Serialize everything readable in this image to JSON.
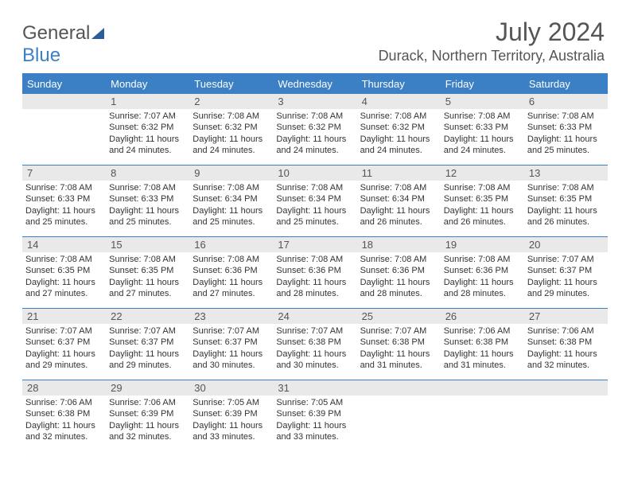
{
  "logo": {
    "word1": "General",
    "word2": "Blue"
  },
  "title": "July 2024",
  "location": "Durack, Northern Territory, Australia",
  "colors": {
    "header_bg": "#3b7fc4",
    "header_fg": "#ffffff",
    "daynum_bg": "#e9e9e9",
    "text": "#333333",
    "logo_gray": "#555555",
    "logo_blue": "#3b7fc4"
  },
  "dayHeaders": [
    "Sunday",
    "Monday",
    "Tuesday",
    "Wednesday",
    "Thursday",
    "Friday",
    "Saturday"
  ],
  "grid": [
    [
      null,
      {
        "n": "1",
        "sr": "7:07 AM",
        "ss": "6:32 PM",
        "dl": "11 hours and 24 minutes."
      },
      {
        "n": "2",
        "sr": "7:08 AM",
        "ss": "6:32 PM",
        "dl": "11 hours and 24 minutes."
      },
      {
        "n": "3",
        "sr": "7:08 AM",
        "ss": "6:32 PM",
        "dl": "11 hours and 24 minutes."
      },
      {
        "n": "4",
        "sr": "7:08 AM",
        "ss": "6:32 PM",
        "dl": "11 hours and 24 minutes."
      },
      {
        "n": "5",
        "sr": "7:08 AM",
        "ss": "6:33 PM",
        "dl": "11 hours and 24 minutes."
      },
      {
        "n": "6",
        "sr": "7:08 AM",
        "ss": "6:33 PM",
        "dl": "11 hours and 25 minutes."
      }
    ],
    [
      {
        "n": "7",
        "sr": "7:08 AM",
        "ss": "6:33 PM",
        "dl": "11 hours and 25 minutes."
      },
      {
        "n": "8",
        "sr": "7:08 AM",
        "ss": "6:33 PM",
        "dl": "11 hours and 25 minutes."
      },
      {
        "n": "9",
        "sr": "7:08 AM",
        "ss": "6:34 PM",
        "dl": "11 hours and 25 minutes."
      },
      {
        "n": "10",
        "sr": "7:08 AM",
        "ss": "6:34 PM",
        "dl": "11 hours and 25 minutes."
      },
      {
        "n": "11",
        "sr": "7:08 AM",
        "ss": "6:34 PM",
        "dl": "11 hours and 26 minutes."
      },
      {
        "n": "12",
        "sr": "7:08 AM",
        "ss": "6:35 PM",
        "dl": "11 hours and 26 minutes."
      },
      {
        "n": "13",
        "sr": "7:08 AM",
        "ss": "6:35 PM",
        "dl": "11 hours and 26 minutes."
      }
    ],
    [
      {
        "n": "14",
        "sr": "7:08 AM",
        "ss": "6:35 PM",
        "dl": "11 hours and 27 minutes."
      },
      {
        "n": "15",
        "sr": "7:08 AM",
        "ss": "6:35 PM",
        "dl": "11 hours and 27 minutes."
      },
      {
        "n": "16",
        "sr": "7:08 AM",
        "ss": "6:36 PM",
        "dl": "11 hours and 27 minutes."
      },
      {
        "n": "17",
        "sr": "7:08 AM",
        "ss": "6:36 PM",
        "dl": "11 hours and 28 minutes."
      },
      {
        "n": "18",
        "sr": "7:08 AM",
        "ss": "6:36 PM",
        "dl": "11 hours and 28 minutes."
      },
      {
        "n": "19",
        "sr": "7:08 AM",
        "ss": "6:36 PM",
        "dl": "11 hours and 28 minutes."
      },
      {
        "n": "20",
        "sr": "7:07 AM",
        "ss": "6:37 PM",
        "dl": "11 hours and 29 minutes."
      }
    ],
    [
      {
        "n": "21",
        "sr": "7:07 AM",
        "ss": "6:37 PM",
        "dl": "11 hours and 29 minutes."
      },
      {
        "n": "22",
        "sr": "7:07 AM",
        "ss": "6:37 PM",
        "dl": "11 hours and 29 minutes."
      },
      {
        "n": "23",
        "sr": "7:07 AM",
        "ss": "6:37 PM",
        "dl": "11 hours and 30 minutes."
      },
      {
        "n": "24",
        "sr": "7:07 AM",
        "ss": "6:38 PM",
        "dl": "11 hours and 30 minutes."
      },
      {
        "n": "25",
        "sr": "7:07 AM",
        "ss": "6:38 PM",
        "dl": "11 hours and 31 minutes."
      },
      {
        "n": "26",
        "sr": "7:06 AM",
        "ss": "6:38 PM",
        "dl": "11 hours and 31 minutes."
      },
      {
        "n": "27",
        "sr": "7:06 AM",
        "ss": "6:38 PM",
        "dl": "11 hours and 32 minutes."
      }
    ],
    [
      {
        "n": "28",
        "sr": "7:06 AM",
        "ss": "6:38 PM",
        "dl": "11 hours and 32 minutes."
      },
      {
        "n": "29",
        "sr": "7:06 AM",
        "ss": "6:39 PM",
        "dl": "11 hours and 32 minutes."
      },
      {
        "n": "30",
        "sr": "7:05 AM",
        "ss": "6:39 PM",
        "dl": "11 hours and 33 minutes."
      },
      {
        "n": "31",
        "sr": "7:05 AM",
        "ss": "6:39 PM",
        "dl": "11 hours and 33 minutes."
      },
      null,
      null,
      null
    ]
  ],
  "labels": {
    "sunrise": "Sunrise:",
    "sunset": "Sunset:",
    "daylight": "Daylight:"
  }
}
